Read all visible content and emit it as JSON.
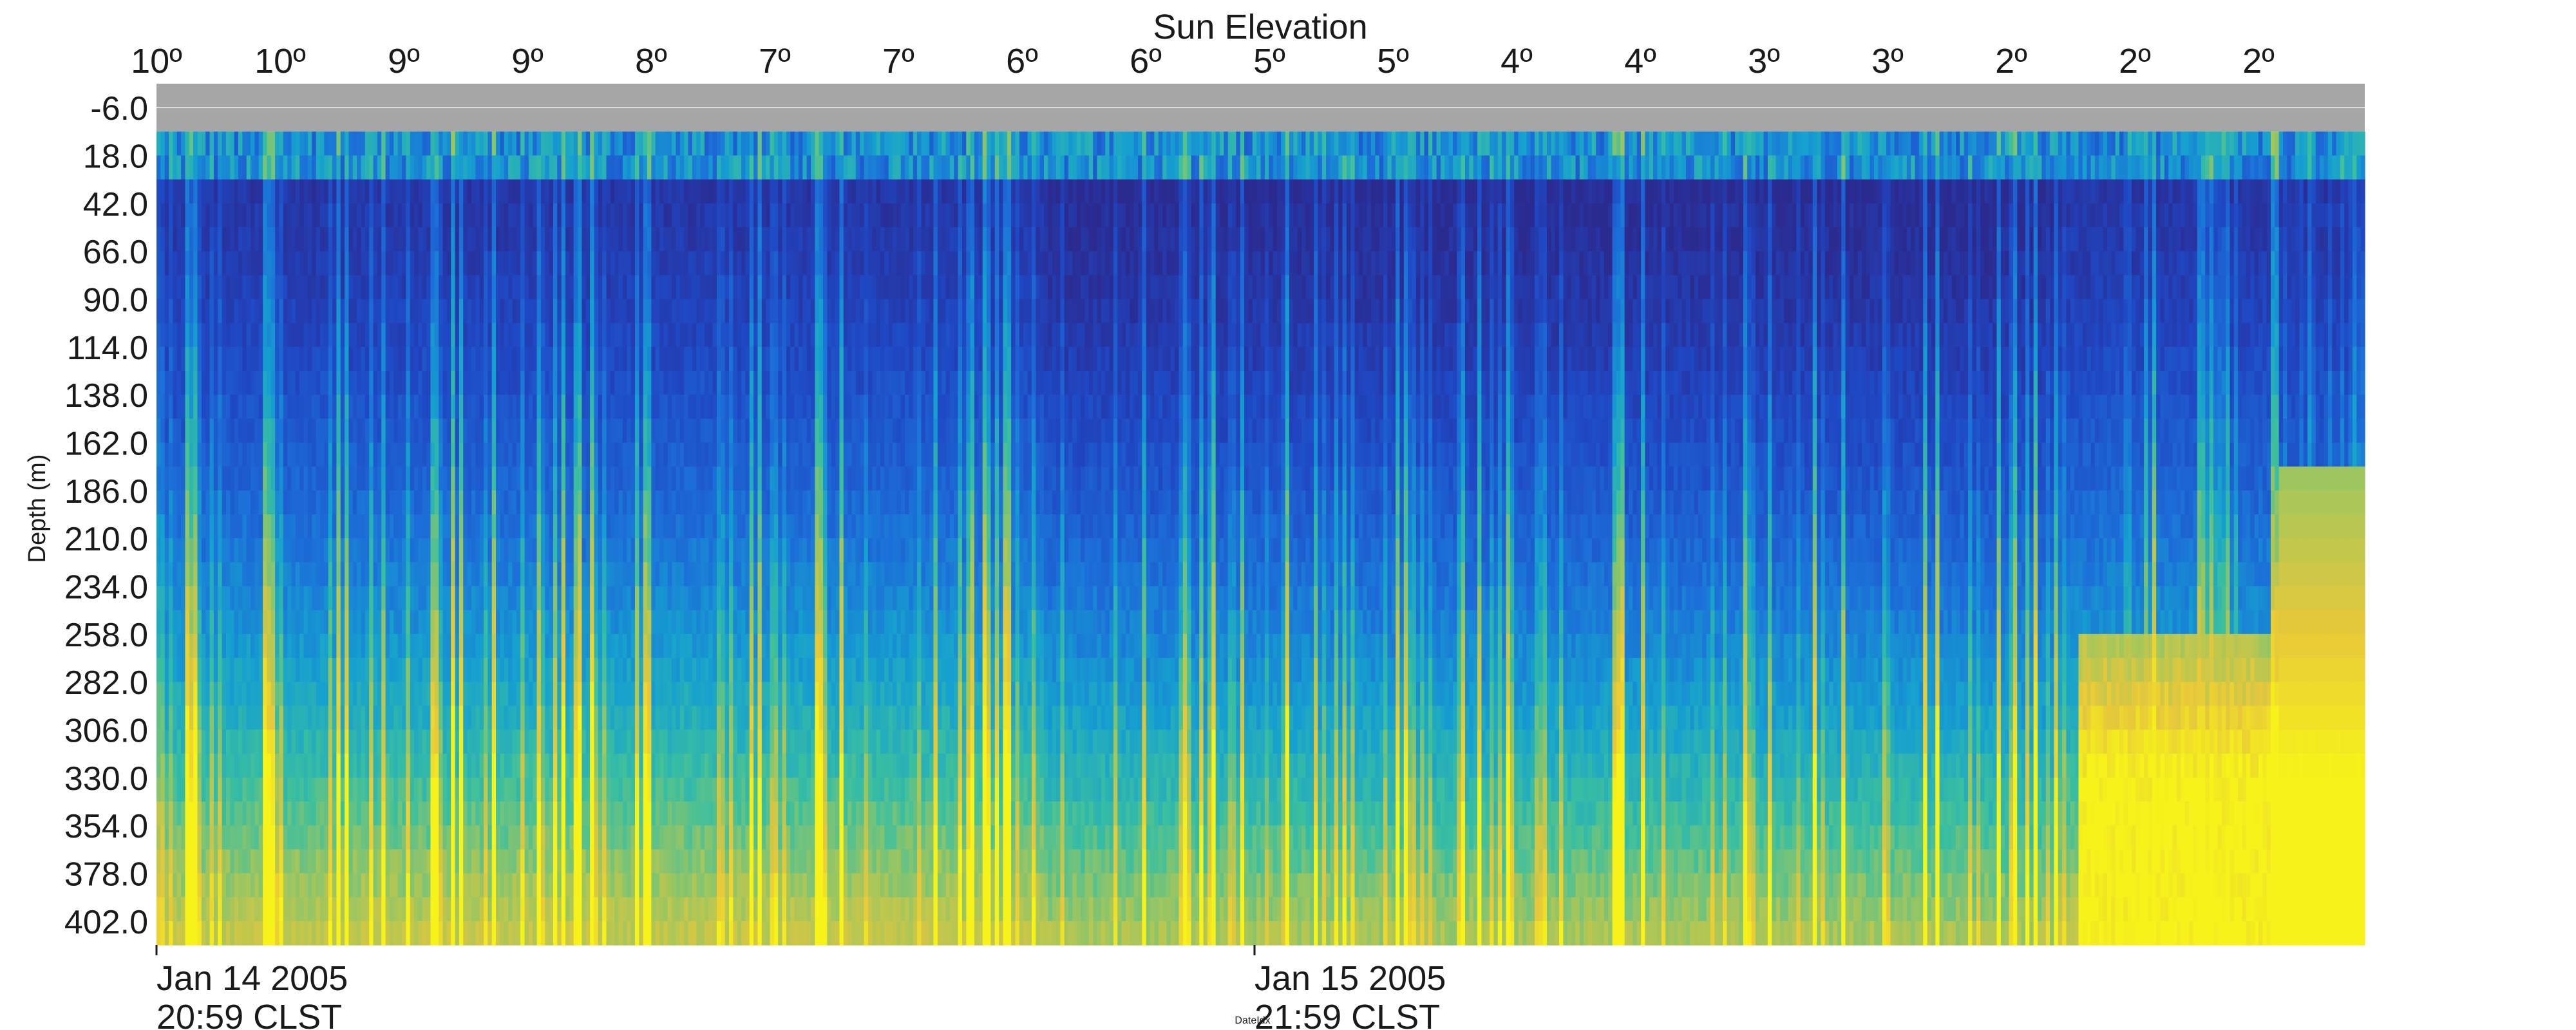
{
  "chart_data": {
    "type": "heatmap",
    "title": "Sun Elevation",
    "ylabel": "Depth (m)",
    "xlabel": "DateIdx",
    "top_axis_ticks": [
      "10º",
      "10º",
      "9º",
      "9º",
      "8º",
      "7º",
      "7º",
      "6º",
      "6º",
      "5º",
      "5º",
      "4º",
      "4º",
      "3º",
      "3º",
      "2º",
      "2º",
      "2º"
    ],
    "y_ticks": [
      "-6.0",
      "18.0",
      "42.0",
      "66.0",
      "90.0",
      "114.0",
      "138.0",
      "162.0",
      "186.0",
      "210.0",
      "234.0",
      "258.0",
      "282.0",
      "306.0",
      "330.0",
      "354.0",
      "378.0",
      "402.0"
    ],
    "ylim": [
      -6.0,
      402.0
    ],
    "y_reversed": true,
    "bottom_ticks": [
      {
        "line1": "Jan 14 2005",
        "line2": "20:59 CLST"
      },
      {
        "line1": "Jan 15 2005",
        "line2": "21:59 CLST"
      }
    ],
    "no_data_band": {
      "depth_from": -6.0,
      "depth_to": 18.0,
      "color": "#a6a6a6"
    },
    "colormap": [
      "#2b2a8f",
      "#1f48c4",
      "#1c6fd8",
      "#16a0cf",
      "#3bbf9f",
      "#a6c65a",
      "#e8c83a",
      "#f6f21a"
    ],
    "colorbar_visible": false
  }
}
